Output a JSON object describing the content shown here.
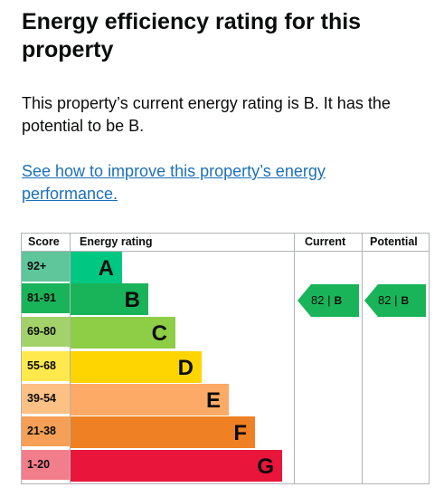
{
  "heading": "Energy efficiency rating for this property",
  "summary": "This property’s current energy rating is B. It has the potential to be B.",
  "link_text": "See how to improve this property’s energy performance.",
  "table": {
    "headers": {
      "score": "Score",
      "rating": "Energy rating",
      "current": "Current",
      "potential": "Potential"
    },
    "bands": [
      {
        "score": "92+",
        "letter": "A",
        "color": "#5fc69c",
        "bar_color": "#00c781"
      },
      {
        "score": "81-91",
        "letter": "B",
        "color": "#19b459",
        "bar_color": "#19b459"
      },
      {
        "score": "69-80",
        "letter": "C",
        "color": "#a3d26a",
        "bar_color": "#8dce46"
      },
      {
        "score": "55-68",
        "letter": "D",
        "color": "#ffe94d",
        "bar_color": "#ffd500"
      },
      {
        "score": "39-54",
        "letter": "E",
        "color": "#fdc085",
        "bar_color": "#fcaa65"
      },
      {
        "score": "21-38",
        "letter": "F",
        "color": "#f5a056",
        "bar_color": "#ef8023"
      },
      {
        "score": "1-20",
        "letter": "G",
        "color": "#f37e8b",
        "bar_color": "#e9153b"
      }
    ],
    "current": {
      "score": "82",
      "separator": "|",
      "band": "B",
      "color": "#19b459"
    },
    "potential": {
      "score": "82",
      "separator": "|",
      "band": "B",
      "color": "#19b459"
    }
  }
}
